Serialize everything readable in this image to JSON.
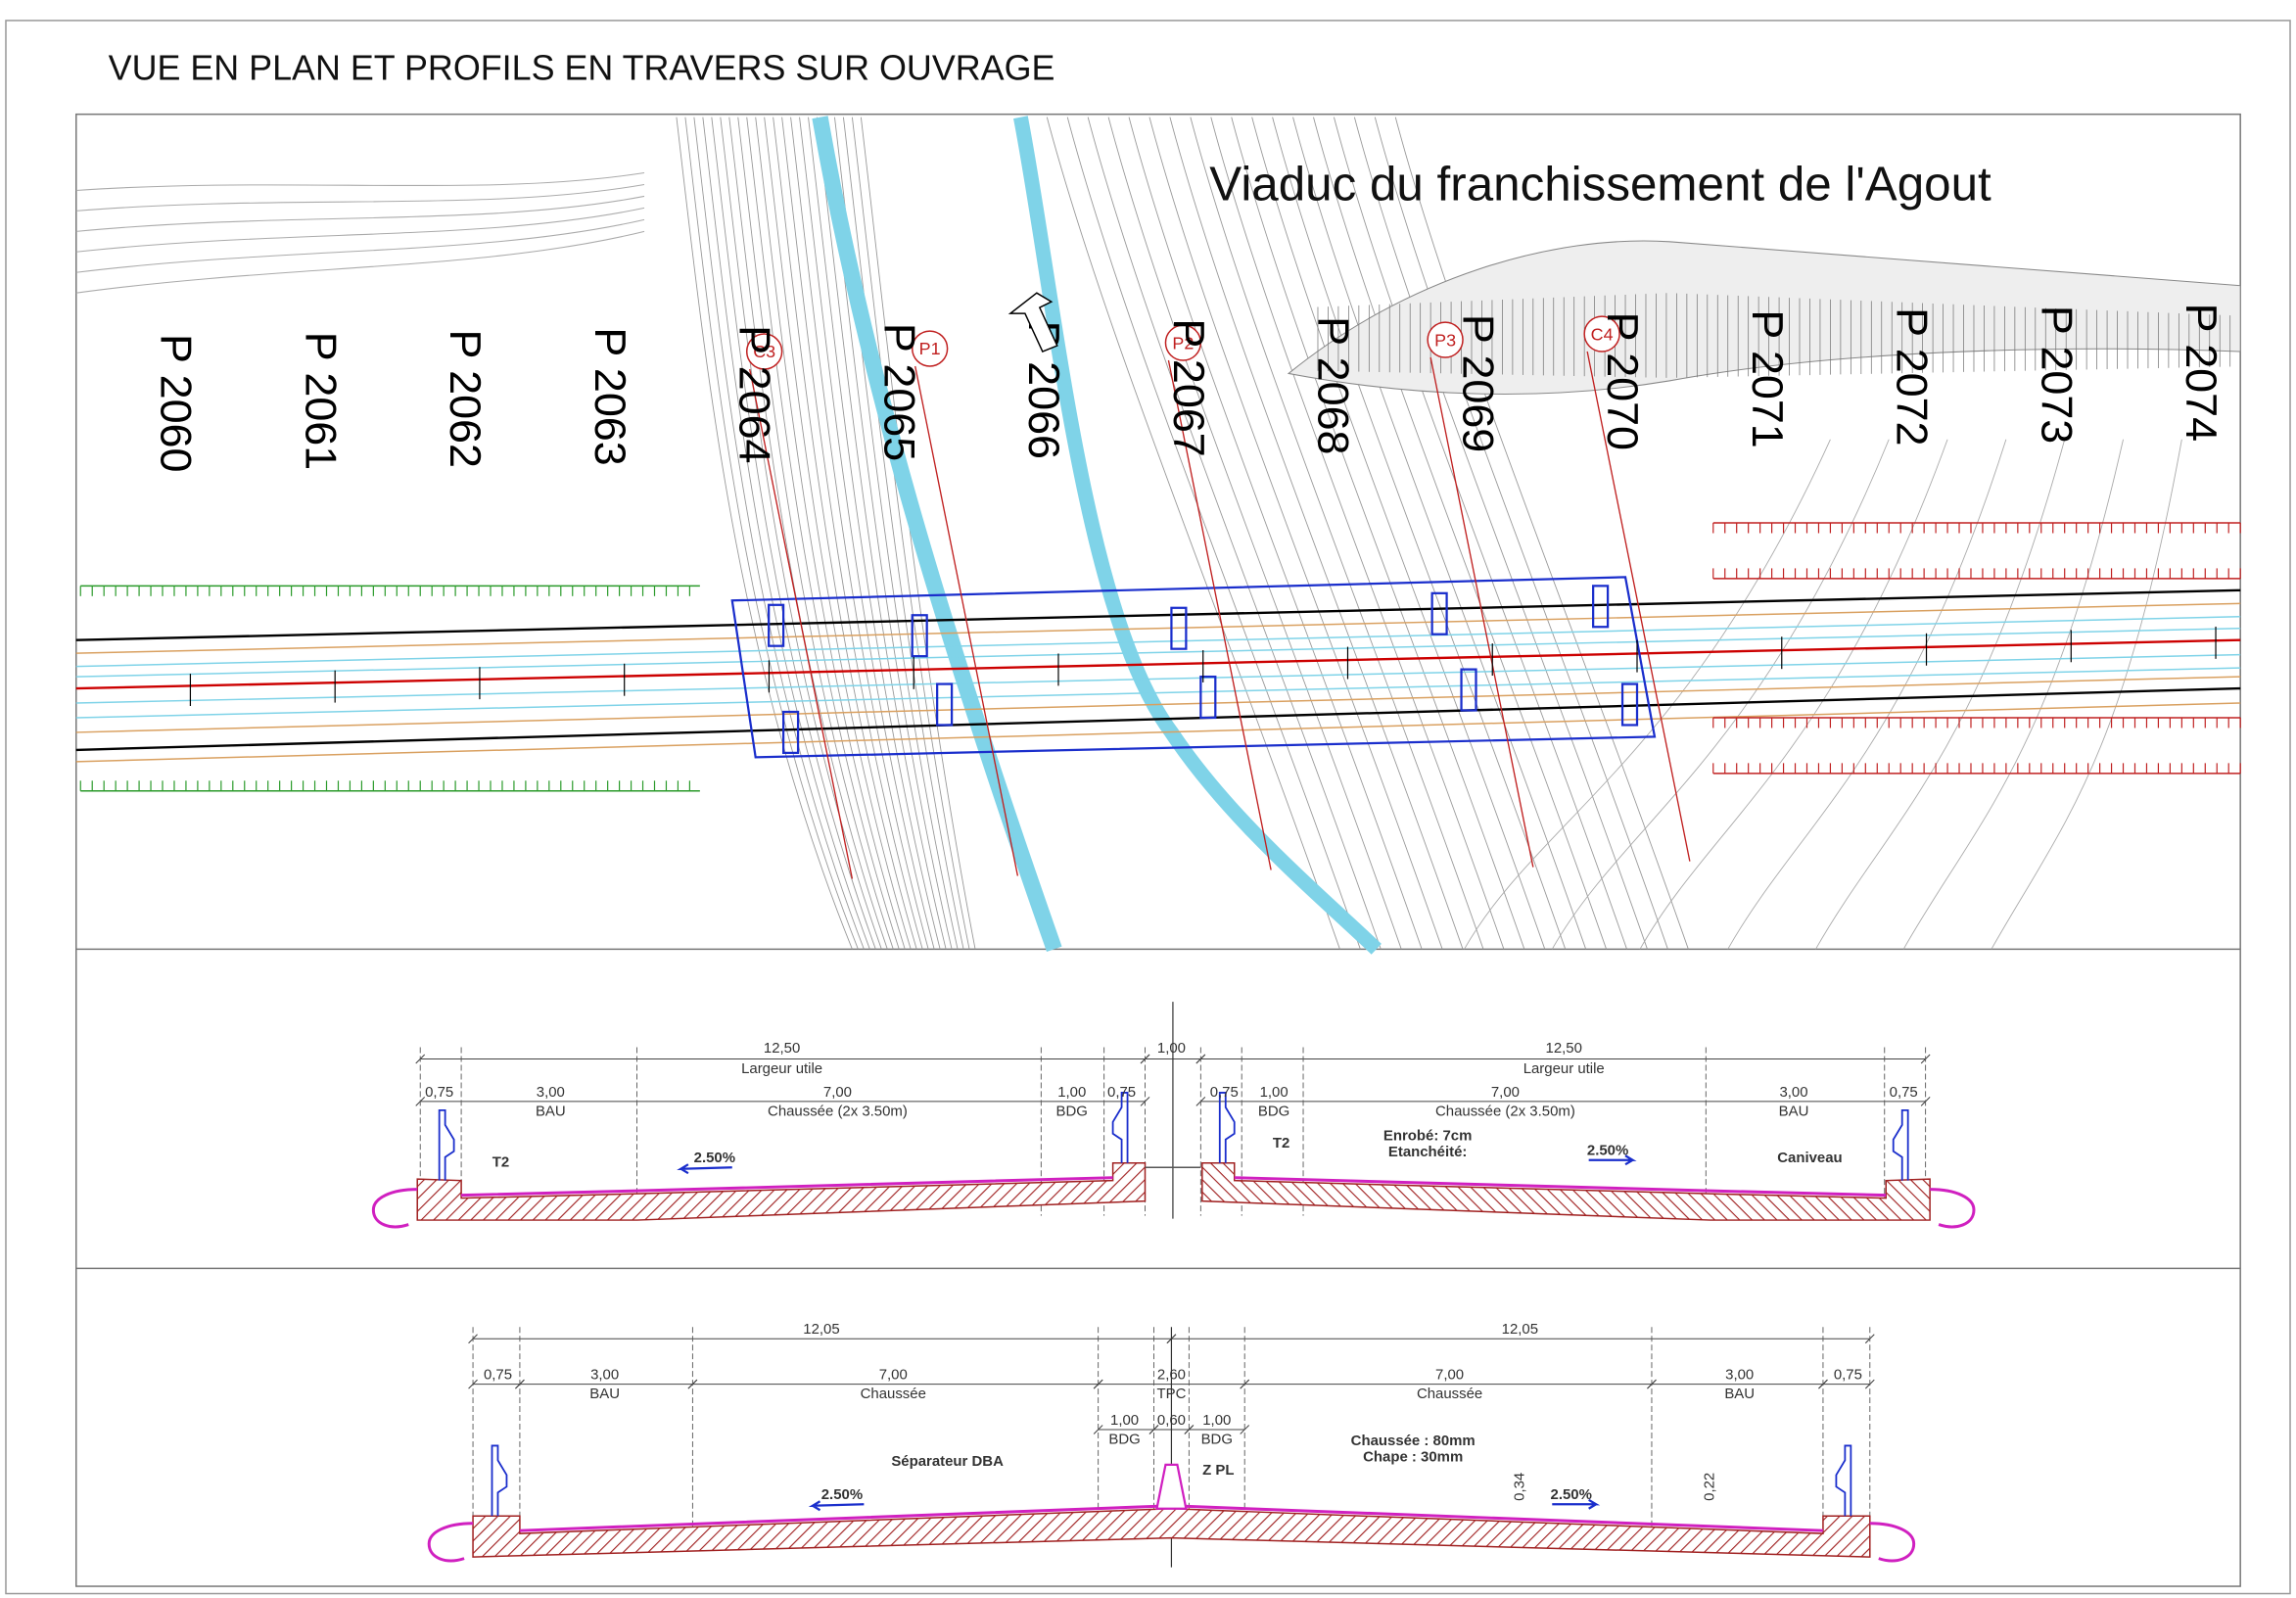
{
  "header": {
    "title": "VUE EN PLAN ET PROFILS EN TRAVERS SUR OUVRAGE"
  },
  "plan": {
    "title": "Viaduc du franchissement de l'Agout",
    "profiles": [
      "P 2060",
      "P 2061",
      "P 2062",
      "P 2063",
      "P 2064",
      "P 2065",
      "P 2066",
      "P 2067",
      "P 2068",
      "P 2069",
      "P 2070",
      "P 2071",
      "P 2072",
      "P 2073",
      "P 2074"
    ],
    "supports": [
      "C3",
      "P1",
      "P2",
      "P3",
      "C4"
    ]
  },
  "section_1": {
    "labels": [
      "12,50",
      "Largeur utile",
      "1,00",
      "12,50",
      "Largeur utile",
      "0,75",
      "3,00",
      "BAU",
      "7,00",
      "Chaussée (2x 3.50m)",
      "1,00",
      "BDG",
      "0,75",
      "0,75",
      "1,00",
      "BDG",
      "7,00",
      "Chaussée (2x 3.50m)",
      "3,00",
      "BAU",
      "0,75",
      "T2",
      "2.50%",
      "T2",
      "Enrobé: 7cm",
      "Etanchéité:",
      "2.50%",
      "Caniveau"
    ]
  },
  "section_2": {
    "labels": [
      "12,05",
      "12,05",
      "0,75",
      "3,00",
      "BAU",
      "7,00",
      "Chaussée",
      "2,60",
      "TPC",
      "7,00",
      "Chaussée",
      "3,00",
      "BAU",
      "0,75",
      "1,00",
      "0,60",
      "1,00",
      "BDG",
      "BDG",
      "Séparateur DBA",
      "Z PL",
      "Chaussée : 80mm",
      "Chape : 30mm",
      "2.50%",
      "2.50%",
      "0,34",
      "0,22"
    ]
  }
}
